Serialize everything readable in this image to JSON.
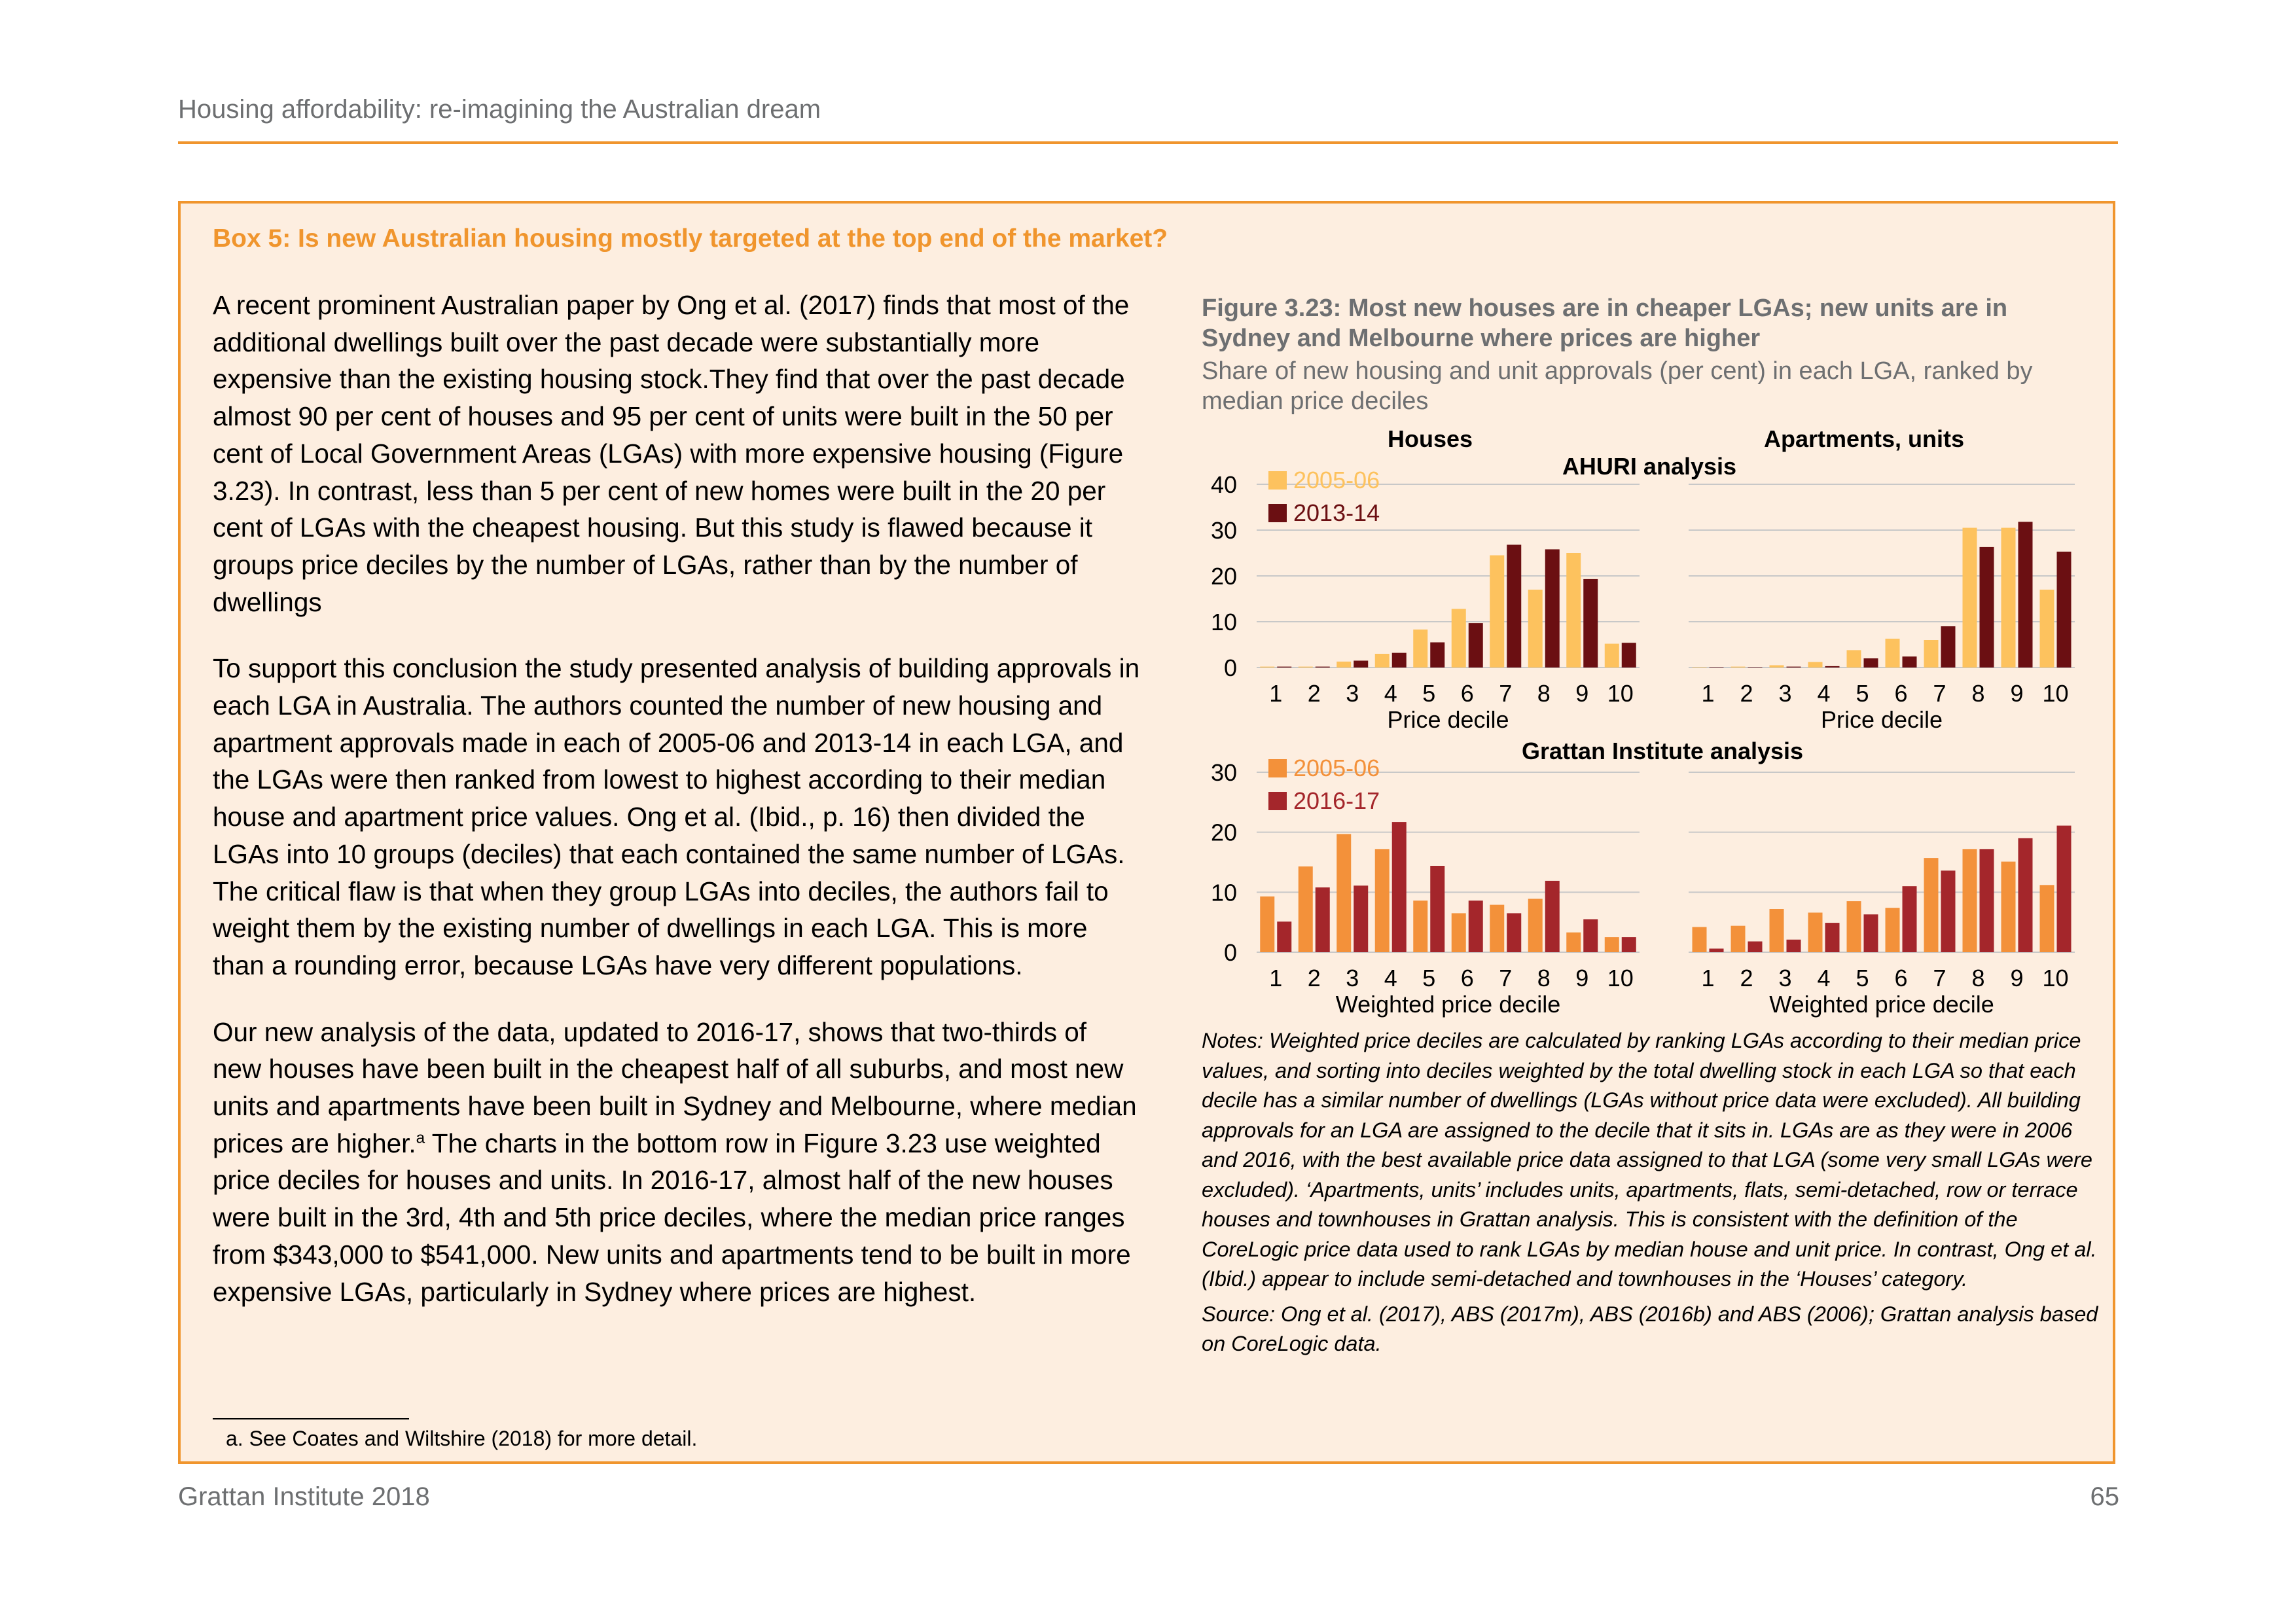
{
  "header": {
    "running_title": "Housing affordability: re-imagining the Australian dream"
  },
  "box": {
    "title": "Box 5: Is new Australian housing mostly targeted at the top end of the market?",
    "paragraphs": [
      "A recent prominent Australian paper by Ong et al. (2017) finds that most of the additional dwellings built over the past decade were substantially more expensive than the existing housing stock.They find that over the past decade almost 90 per cent of houses and 95 per cent of units were built in the 50 per cent of Local Government Areas (LGAs) with more expensive housing (Figure 3.23). In contrast, less than 5 per cent of new homes were built in the 20 per cent of LGAs with the cheapest housing. But this study is flawed because it groups price deciles by the number of LGAs, rather than by the number of dwellings",
      "To support this conclusion the study presented analysis of building approvals in each LGA in Australia. The authors counted the number of new housing and apartment approvals made in each of 2005-06 and 2013-14 in each LGA, and the LGAs were then ranked from lowest to highest according to their median house and apartment price values. Ong et al. (Ibid., p. 16) then divided the LGAs into 10 groups (deciles) that each contained the same number of LGAs. The critical flaw is that when they group LGAs into deciles, the authors fail to weight them by the existing number of dwellings in each LGA. This is more than a rounding error, because LGAs have very different populations."
    ],
    "paragraph3_before": "Our new analysis of the data, updated to 2016-17, shows that two-thirds of new houses have been built in the cheapest half of all suburbs, and most new units and apartments have been built in Sydney and Melbourne, where median prices are higher.",
    "paragraph3_sup": "a",
    "paragraph3_after": " The charts in the bottom row in Figure 3.23 use weighted price deciles for houses and units. In 2016-17, almost half of the new houses were built in the 3rd, 4th and 5th price deciles, where the median price ranges from $343,000 to $541,000. New units and apartments tend to be built in more expensive LGAs, particularly in Sydney where prices are highest.",
    "footnote": "a.  See Coates and Wiltshire (2018) for more detail."
  },
  "figure": {
    "title": "Figure 3.23: Most new houses are in cheaper LGAs; new units are in Sydney and Melbourne where prices are higher",
    "subtitle": "Share of new housing and unit approvals (per cent) in each LGA, ranked by median price deciles",
    "notes": "Notes: Weighted price deciles are calculated by ranking LGAs according to their median price values, and sorting into deciles weighted by the total dwelling stock in each LGA so that each decile has a similar number of dwellings (LGAs without price data were excluded). All building approvals for an LGA are assigned to the decile that it sits in. LGAs are as they were in 2006 and 2016, with the best available price data assigned to that LGA (some very small LGAs were excluded). ‘Apartments, units’ includes units, apartments, flats, semi-detached, row or terrace houses and townhouses in Grattan analysis. This is consistent with the definition of the CoreLogic price data used to rank LGAs by median house and unit price. In contrast, Ong et al. (Ibid.) appear to include semi-detached and townhouses in the ‘Houses’ category.",
    "source": "Source: Ong et al. (2017), ABS (2017m), ABS (2016b) and ABS (2006); Grattan analysis based on CoreLogic data.",
    "col_titles": [
      "Houses",
      "Apartments, units"
    ],
    "row_titles": [
      "AHURI analysis",
      "Grattan Institute analysis"
    ]
  },
  "chart_data": [
    {
      "type": "bar",
      "title": "Houses",
      "row": "AHURI analysis",
      "xlabel": "Price decile",
      "ylabel": "",
      "ylim": [
        0,
        40
      ],
      "yticks": [
        0,
        10,
        20,
        30,
        40
      ],
      "categories": [
        "1",
        "2",
        "3",
        "4",
        "5",
        "6",
        "7",
        "8",
        "9",
        "10"
      ],
      "series": [
        {
          "name": "2005-06",
          "color": "#fdc25e",
          "values": [
            0.2,
            0.2,
            1.3,
            3.0,
            8.3,
            12.8,
            24.5,
            17.0,
            25.0,
            5.2
          ]
        },
        {
          "name": "2013-14",
          "color": "#6b0f12",
          "values": [
            0.2,
            0.2,
            1.5,
            3.2,
            5.5,
            9.7,
            26.8,
            25.8,
            19.3,
            5.4
          ]
        }
      ],
      "legend": "top-left"
    },
    {
      "type": "bar",
      "title": "Apartments, units",
      "row": "AHURI analysis",
      "xlabel": "Price decile",
      "ylabel": "",
      "ylim": [
        0,
        40
      ],
      "yticks": [
        0,
        10,
        20,
        30,
        40
      ],
      "categories": [
        "1",
        "2",
        "3",
        "4",
        "5",
        "6",
        "7",
        "8",
        "9",
        "10"
      ],
      "series": [
        {
          "name": "2005-06",
          "color": "#fdc25e",
          "values": [
            0.1,
            0.2,
            0.5,
            1.2,
            3.8,
            6.3,
            6.0,
            30.5,
            30.5,
            17.0
          ]
        },
        {
          "name": "2013-14",
          "color": "#6b0f12",
          "values": [
            0.1,
            0.1,
            0.2,
            0.3,
            2.0,
            2.4,
            9.0,
            26.3,
            31.8,
            25.3
          ]
        }
      ]
    },
    {
      "type": "bar",
      "title": "Houses",
      "row": "Grattan Institute analysis",
      "xlabel": "Weighted price decile",
      "ylabel": "",
      "ylim": [
        0,
        30
      ],
      "yticks": [
        0,
        10,
        20,
        30
      ],
      "categories": [
        "1",
        "2",
        "3",
        "4",
        "5",
        "6",
        "7",
        "8",
        "9",
        "10"
      ],
      "series": [
        {
          "name": "2005-06",
          "color": "#f3913a",
          "values": [
            9.3,
            14.3,
            19.7,
            17.2,
            8.6,
            6.5,
            7.9,
            8.9,
            3.3,
            2.5
          ]
        },
        {
          "name": "2016-17",
          "color": "#a4262b",
          "values": [
            5.1,
            10.8,
            11.1,
            21.7,
            14.4,
            8.6,
            6.5,
            11.9,
            5.5,
            2.5
          ]
        }
      ],
      "legend": "top-left"
    },
    {
      "type": "bar",
      "title": "Apartments, units",
      "row": "Grattan Institute analysis",
      "xlabel": "Weighted price decile",
      "ylabel": "",
      "ylim": [
        0,
        30
      ],
      "yticks": [
        0,
        10,
        20,
        30
      ],
      "categories": [
        "1",
        "2",
        "3",
        "4",
        "5",
        "6",
        "7",
        "8",
        "9",
        "10"
      ],
      "series": [
        {
          "name": "2005-06",
          "color": "#f3913a",
          "values": [
            4.2,
            4.4,
            7.2,
            6.6,
            8.5,
            7.4,
            15.7,
            17.2,
            15.1,
            11.2
          ]
        },
        {
          "name": "2016-17",
          "color": "#a4262b",
          "values": [
            0.6,
            1.8,
            2.1,
            4.9,
            6.3,
            11.0,
            13.6,
            17.2,
            19.0,
            21.1
          ]
        }
      ]
    }
  ],
  "footer": {
    "left": "Grattan Institute 2018",
    "page_number": "65"
  }
}
